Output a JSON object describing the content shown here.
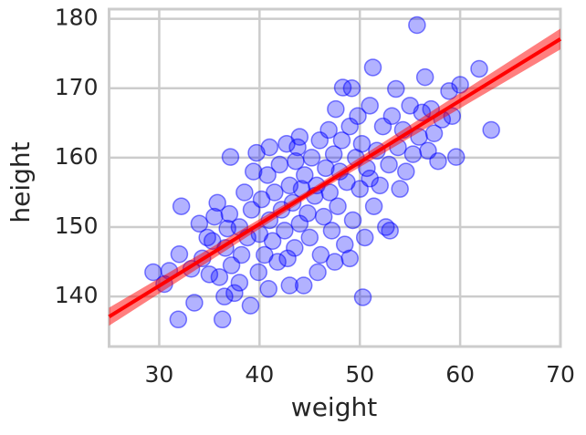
{
  "chart_data": {
    "type": "scatter",
    "x_label": "weight",
    "y_label": "height",
    "x": [
      29.4,
      30.5,
      31.0,
      31.9,
      32.0,
      32.2,
      33.2,
      33.5,
      34.0,
      34.3,
      35.0,
      35.3,
      35.5,
      35.8,
      36.0,
      36.3,
      36.5,
      36.6,
      36.8,
      37.0,
      37.1,
      37.2,
      37.5,
      38.0,
      38.2,
      38.5,
      38.8,
      39.1,
      39.2,
      39.4,
      39.7,
      39.9,
      40.0,
      40.2,
      40.5,
      40.8,
      40.9,
      41.0,
      41.3,
      41.5,
      41.8,
      42.0,
      42.2,
      42.5,
      42.7,
      43.0,
      43.0,
      43.3,
      43.5,
      43.6,
      43.8,
      44.0,
      44.2,
      44.4,
      44.5,
      44.8,
      45.0,
      45.2,
      45.5,
      45.7,
      46.0,
      46.1,
      46.4,
      46.6,
      46.9,
      47.0,
      47.2,
      47.4,
      47.6,
      47.8,
      48.0,
      48.2,
      48.3,
      48.5,
      48.7,
      49.0,
      49.2,
      49.3,
      49.6,
      49.8,
      50.0,
      50.2,
      50.3,
      50.5,
      50.7,
      51.0,
      51.3,
      51.4,
      51.7,
      52.0,
      52.3,
      52.6,
      52.9,
      53.2,
      53.6,
      53.8,
      54.0,
      54.3,
      54.6,
      55.0,
      55.3,
      55.7,
      55.9,
      56.2,
      56.5,
      56.8,
      57.1,
      57.4,
      57.8,
      58.2,
      58.9,
      59.2,
      59.6,
      60.0,
      61.9,
      63.1,
      47.5,
      45.8,
      49.0,
      53.0,
      38.0,
      34.8,
      44.0,
      41.0,
      51.0,
      42.8
    ],
    "y": [
      143.5,
      141.8,
      143.7,
      136.7,
      146.1,
      153.0,
      144.0,
      139.1,
      150.5,
      145.5,
      143.2,
      148.0,
      151.5,
      153.5,
      142.8,
      136.7,
      140.0,
      147.0,
      149.8,
      151.9,
      160.1,
      144.5,
      140.5,
      150.0,
      146.0,
      155.0,
      148.5,
      138.7,
      152.5,
      158.0,
      160.7,
      143.5,
      149.0,
      154.0,
      146.0,
      157.5,
      141.1,
      151.0,
      148.0,
      155.0,
      145.0,
      159.0,
      152.5,
      149.5,
      162.0,
      141.6,
      156.0,
      153.5,
      147.0,
      159.5,
      161.5,
      150.5,
      155.5,
      141.6,
      157.5,
      152.0,
      148.5,
      160.0,
      154.5,
      156.0,
      162.5,
      146.0,
      151.5,
      158.5,
      164.0,
      155.0,
      149.5,
      160.5,
      167.0,
      153.0,
      158.0,
      162.5,
      170.1,
      147.5,
      156.5,
      164.5,
      170.0,
      151.0,
      160.0,
      166.0,
      155.5,
      162.0,
      139.9,
      148.5,
      158.5,
      167.5,
      173.0,
      153.0,
      161.0,
      156.0,
      164.5,
      150.0,
      159.0,
      166.0,
      169.9,
      161.5,
      155.5,
      164.0,
      158.0,
      167.5,
      160.5,
      179.1,
      163.0,
      166.5,
      171.6,
      161.0,
      167.0,
      163.5,
      159.5,
      165.5,
      169.6,
      166.0,
      160.1,
      170.5,
      172.8,
      164.0,
      145.0,
      143.5,
      145.5,
      149.5,
      142.0,
      148.5,
      163.0,
      161.5,
      157.0,
      145.5
    ],
    "color": "#0000ff",
    "fit": {
      "color": "#ff0000",
      "x": [
        25,
        45,
        70
      ],
      "y": [
        137.1,
        154.9,
        177.1
      ],
      "lower": [
        135.8,
        154.4,
        175.6
      ],
      "upper": [
        138.4,
        155.4,
        178.6
      ]
    },
    "xlim": [
      25,
      70
    ],
    "ylim": [
      132.8,
      181.4
    ],
    "xticks": [
      30,
      40,
      50,
      60,
      70
    ],
    "yticks": [
      140,
      150,
      160,
      170,
      180
    ],
    "grid": true
  }
}
